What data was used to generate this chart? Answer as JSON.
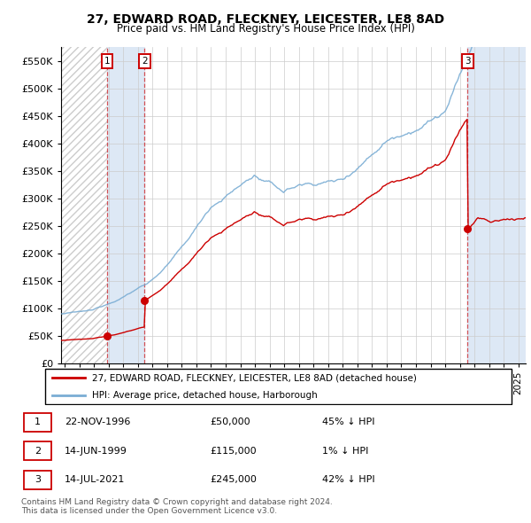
{
  "title1": "27, EDWARD ROAD, FLECKNEY, LEICESTER, LE8 8AD",
  "title2": "Price paid vs. HM Land Registry's House Price Index (HPI)",
  "ylim": [
    0,
    575000
  ],
  "yticks": [
    0,
    50000,
    100000,
    150000,
    200000,
    250000,
    300000,
    350000,
    400000,
    450000,
    500000,
    550000
  ],
  "xlim_start": 1993.75,
  "xlim_end": 2025.5,
  "sale_dates": [
    1996.896,
    1999.452,
    2021.536
  ],
  "sale_prices": [
    50000,
    115000,
    245000
  ],
  "sale_labels": [
    "1",
    "2",
    "3"
  ],
  "legend_property": "27, EDWARD ROAD, FLECKNEY, LEICESTER, LE8 8AD (detached house)",
  "legend_hpi": "HPI: Average price, detached house, Harborough",
  "table_rows": [
    [
      "1",
      "22-NOV-1996",
      "£50,000",
      "45% ↓ HPI"
    ],
    [
      "2",
      "14-JUN-1999",
      "£115,000",
      "1% ↓ HPI"
    ],
    [
      "3",
      "14-JUL-2021",
      "£245,000",
      "42% ↓ HPI"
    ]
  ],
  "footer": "Contains HM Land Registry data © Crown copyright and database right 2024.\nThis data is licensed under the Open Government Licence v3.0.",
  "hpi_color": "#7aadd4",
  "property_color": "#cc0000",
  "shade_color": "#dde8f5",
  "hatch_color": "#bbbbbb",
  "grid_color": "#cccccc"
}
